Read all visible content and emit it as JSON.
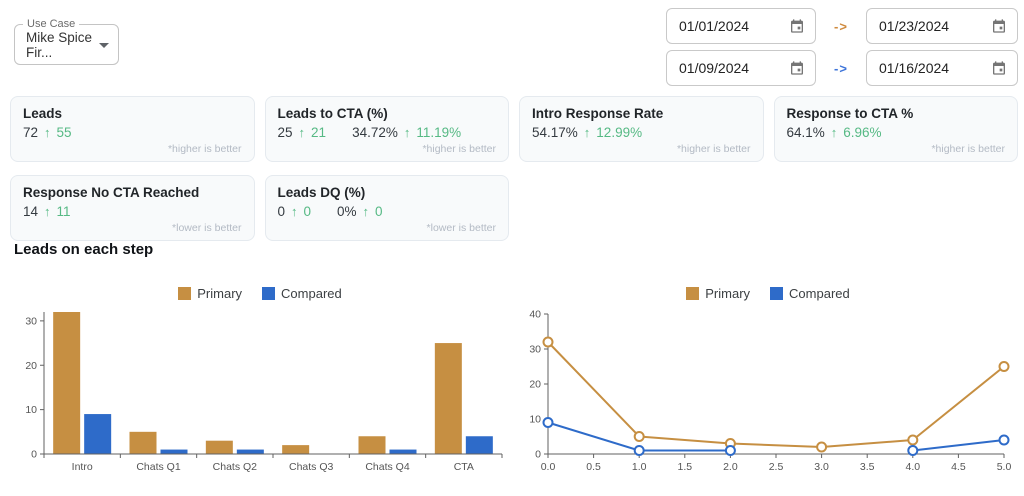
{
  "header": {
    "use_case": {
      "label": "Use Case",
      "value": "Mike Spice Fir..."
    },
    "date_ranges": [
      {
        "start": "01/01/2024",
        "arrow": "->",
        "arrow_color": "#cf8a3d",
        "end": "01/23/2024"
      },
      {
        "start": "01/09/2024",
        "arrow": "->",
        "arrow_color": "#3d74d9",
        "end": "01/16/2024"
      }
    ]
  },
  "metrics": [
    {
      "title": "Leads",
      "groups": [
        {
          "value": "72",
          "delta": "55"
        }
      ],
      "footnote": "*higher is better"
    },
    {
      "title": "Leads to CTA (%)",
      "groups": [
        {
          "value": "25",
          "delta": "21"
        },
        {
          "value": "34.72%",
          "delta": "11.19%"
        }
      ],
      "footnote": "*higher is better"
    },
    {
      "title": "Intro Response Rate",
      "groups": [
        {
          "value": "54.17%",
          "delta": "12.99%"
        }
      ],
      "footnote": "*higher is better"
    },
    {
      "title": "Response to CTA %",
      "groups": [
        {
          "value": "64.1%",
          "delta": "6.96%"
        }
      ],
      "footnote": "*higher is better"
    },
    {
      "title": "Response No CTA Reached",
      "groups": [
        {
          "value": "14",
          "delta": "11"
        }
      ],
      "footnote": "*lower is better"
    },
    {
      "title": "Leads DQ (%)",
      "groups": [
        {
          "value": "0",
          "delta": "0"
        },
        {
          "value": "0%",
          "delta": "0"
        }
      ],
      "footnote": "*lower is better"
    }
  ],
  "section_title": "Leads on each step",
  "colors": {
    "primary": "#c68f42",
    "compared": "#2e6bc9",
    "positive": "#56b984",
    "axis_line": "#616161",
    "axis_text": "#555555"
  },
  "chart_data": [
    {
      "type": "bar",
      "title": "",
      "categories": [
        "Intro",
        "Chats Q1",
        "Chats Q2",
        "Chats Q3",
        "Chats Q4",
        "CTA"
      ],
      "series": [
        {
          "name": "Primary",
          "color": "#c68f42",
          "values": [
            32,
            5,
            3,
            2,
            4,
            25
          ]
        },
        {
          "name": "Compared",
          "color": "#2e6bc9",
          "values": [
            9,
            1,
            1,
            0,
            1,
            4
          ]
        }
      ],
      "ylim": [
        0,
        32
      ],
      "yticks": [
        0,
        10,
        20,
        30
      ],
      "legend_position": "top-center",
      "grid": false
    },
    {
      "type": "line",
      "title": "",
      "x": [
        0,
        1,
        2,
        3,
        4,
        5
      ],
      "series": [
        {
          "name": "Primary",
          "color": "#c68f42",
          "values": [
            32,
            5,
            3,
            2,
            4,
            25
          ]
        },
        {
          "name": "Compared",
          "color": "#2e6bc9",
          "values": [
            9,
            1,
            1,
            null,
            1,
            4
          ]
        }
      ],
      "xlim": [
        0,
        5
      ],
      "ylim": [
        0,
        40
      ],
      "xticks": [
        "0.0",
        "0.5",
        "1.0",
        "1.5",
        "2.0",
        "2.5",
        "3.0",
        "3.5",
        "4.0",
        "4.5",
        "5.0"
      ],
      "yticks": [
        0,
        10,
        20,
        30,
        40
      ],
      "marker": "open-circle",
      "legend_position": "top-center",
      "grid": false
    }
  ]
}
